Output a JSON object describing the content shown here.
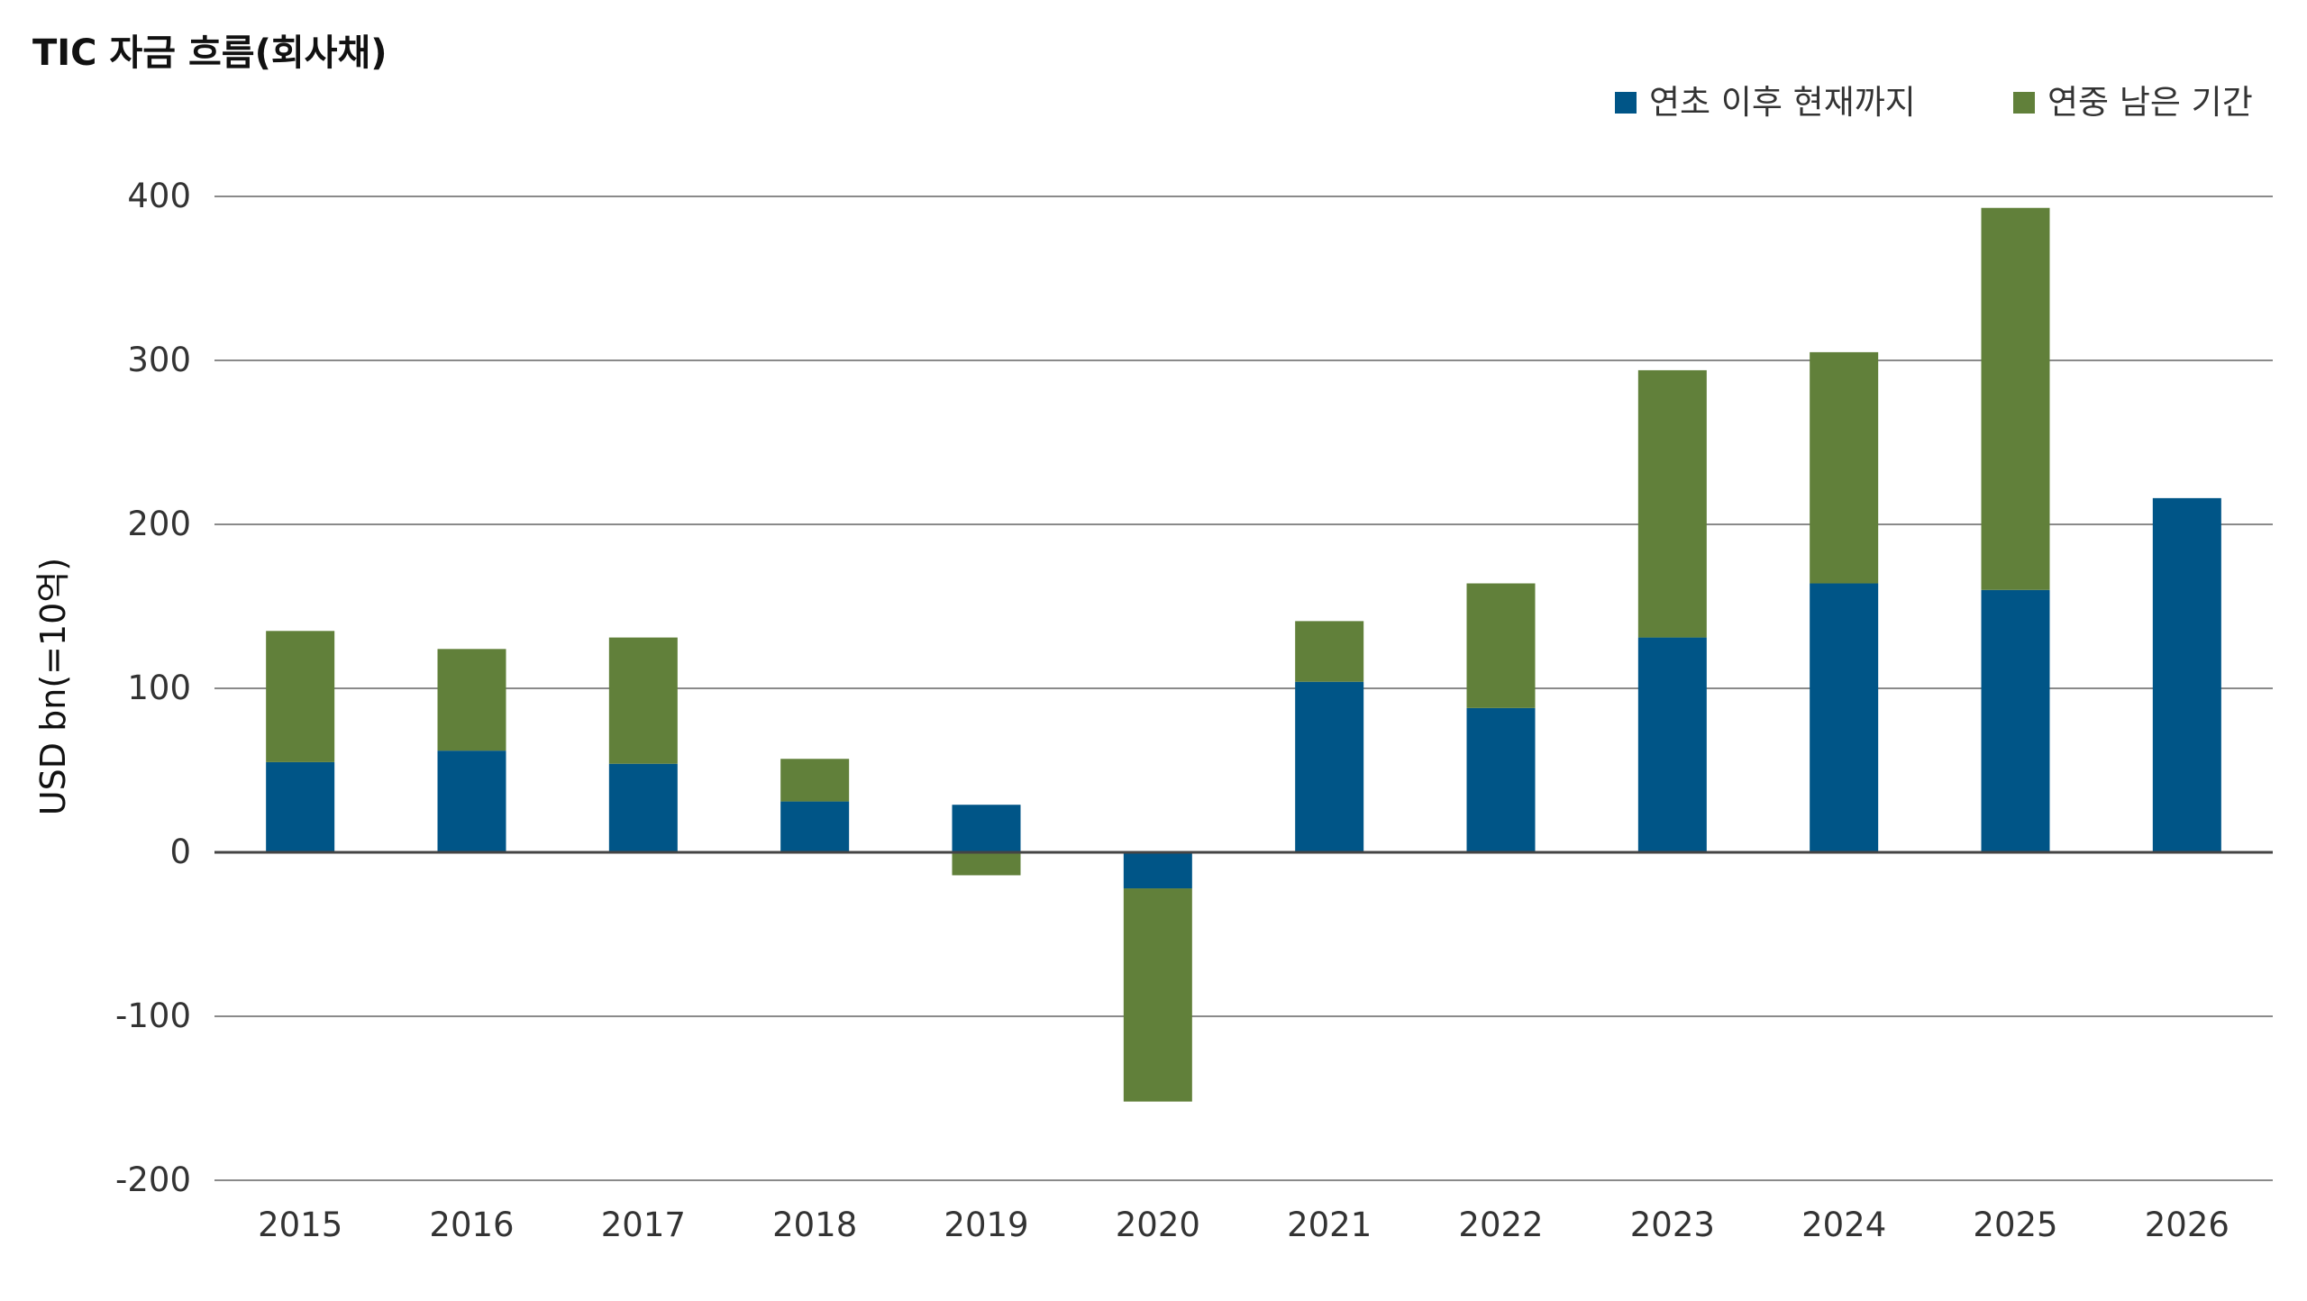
{
  "chart_data": {
    "type": "bar",
    "stacked": true,
    "title": "TIC 자금 흐름(회사채)",
    "xlabel": "",
    "ylabel": "USD bn(=10억)",
    "ylim": [
      -200,
      400
    ],
    "yticks": [
      400,
      300,
      200,
      100,
      0,
      -100,
      -200
    ],
    "ytick_labels": [
      "400",
      "300",
      "200",
      "100",
      "0",
      "-100",
      "-200"
    ],
    "grid": true,
    "legend_position": "top-right",
    "categories": [
      "2015",
      "2016",
      "2017",
      "2018",
      "2019",
      "2020",
      "2021",
      "2022",
      "2023",
      "2024",
      "2025",
      "2026"
    ],
    "series": [
      {
        "name": "연초 이후 현재까지",
        "color": "#005587",
        "values": [
          55,
          62,
          54,
          31,
          29,
          -22,
          104,
          88,
          131,
          164,
          160,
          216
        ]
      },
      {
        "name": "연중 남은 기간",
        "color": "#61803a",
        "values": [
          80,
          62,
          77,
          26,
          -14,
          -130,
          37,
          76,
          163,
          141,
          233,
          0
        ]
      }
    ]
  }
}
